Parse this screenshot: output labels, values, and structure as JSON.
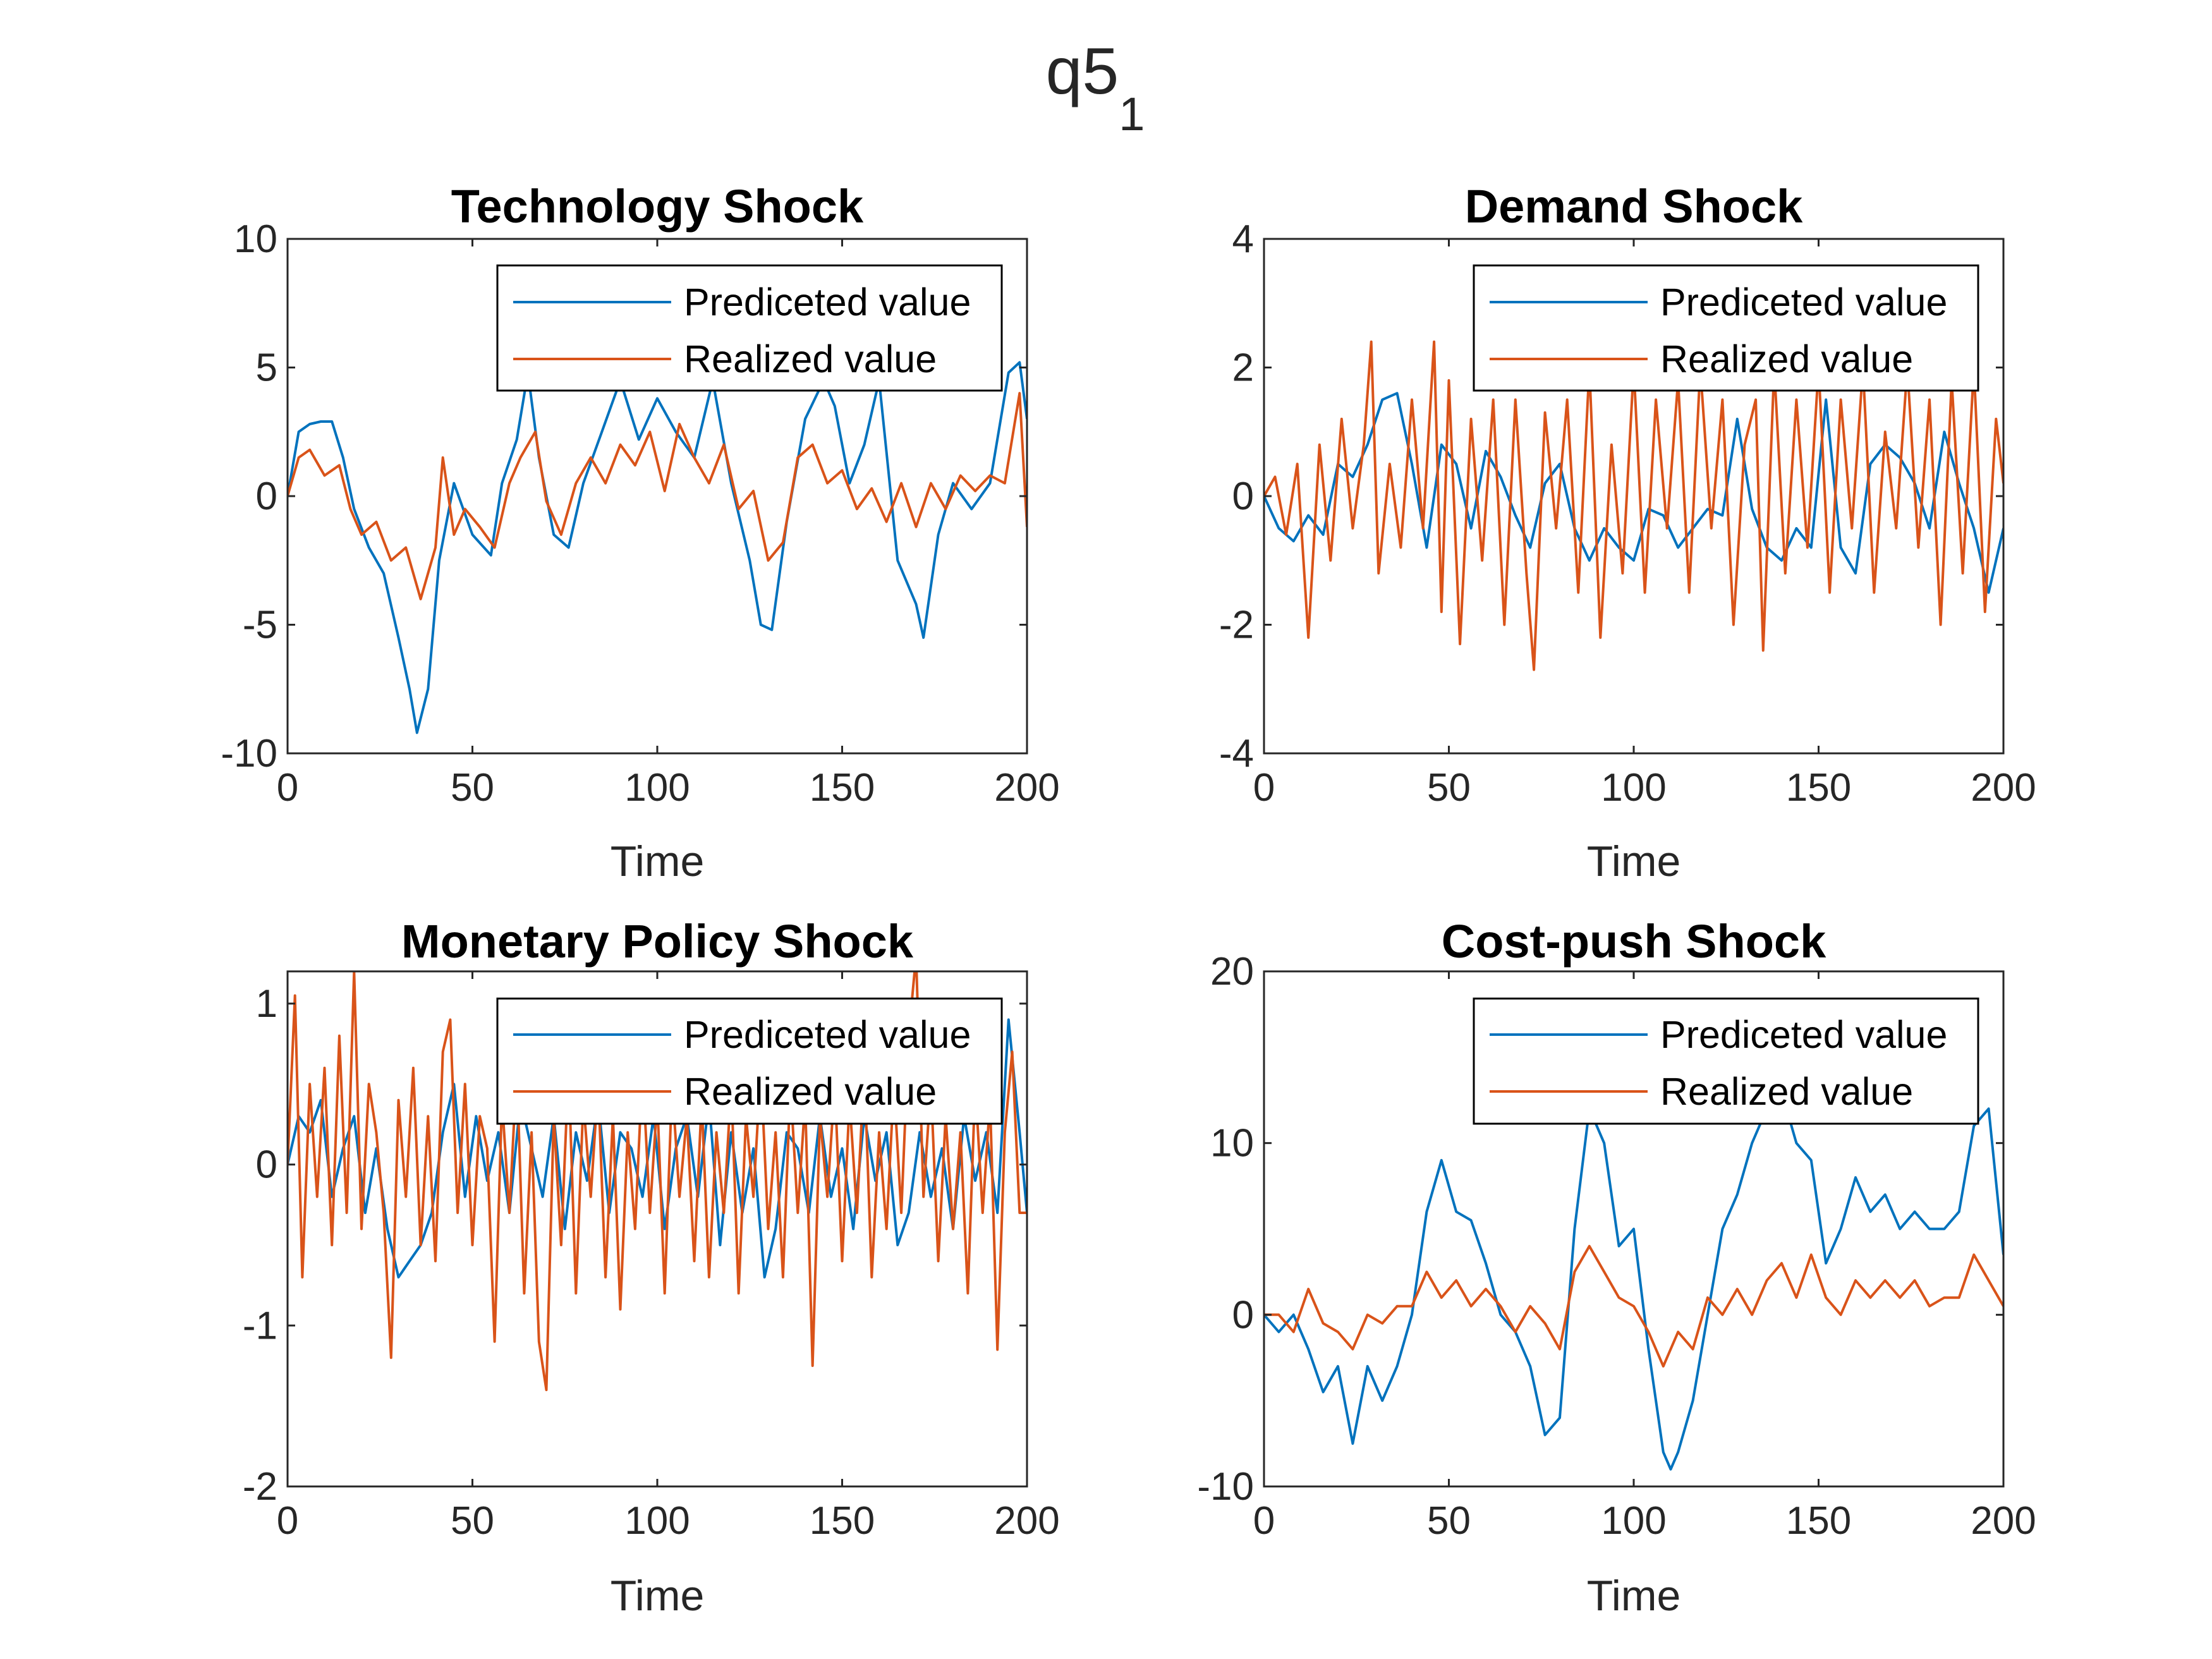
{
  "figure": {
    "title": "q5",
    "title_subscript": "1"
  },
  "colors": {
    "predicted": "#0072BD",
    "realized": "#D95319",
    "axes": "#262626",
    "legend_border": "#000000"
  },
  "chart_data": [
    {
      "type": "line",
      "title": "Technology Shock",
      "xlabel": "Time",
      "ylabel": "",
      "xlim": [
        0,
        200
      ],
      "ylim": [
        -10,
        10
      ],
      "xticks": [
        0,
        50,
        100,
        150,
        200
      ],
      "yticks": [
        -10,
        -5,
        0,
        5,
        10
      ],
      "legend_position": "top-right",
      "series": [
        {
          "name": "Prediceted value",
          "color": "#0072BD",
          "x": [
            0,
            3,
            6,
            9,
            12,
            15,
            18,
            22,
            26,
            30,
            33,
            35,
            38,
            41,
            45,
            50,
            55,
            58,
            62,
            65,
            68,
            72,
            76,
            80,
            85,
            90,
            95,
            100,
            105,
            110,
            115,
            120,
            125,
            128,
            131,
            135,
            140,
            145,
            148,
            152,
            156,
            160,
            165,
            170,
            172,
            176,
            180,
            185,
            190,
            195,
            198,
            200
          ],
          "y": [
            0,
            2.5,
            2.8,
            2.9,
            2.9,
            1.5,
            -0.5,
            -2,
            -3,
            -5.5,
            -7.5,
            -9.2,
            -7.5,
            -2.5,
            0.5,
            -1.5,
            -2.3,
            0.5,
            2.2,
            4.8,
            1.5,
            -1.5,
            -2,
            0.5,
            2.5,
            4.5,
            2.2,
            3.8,
            2.5,
            1.5,
            4.5,
            0.5,
            -2.5,
            -5,
            -5.2,
            -1,
            3,
            4.5,
            3.5,
            0.5,
            2,
            4.5,
            -2.5,
            -4.2,
            -5.5,
            -1.5,
            0.5,
            -0.5,
            0.5,
            4.8,
            5.2,
            3
          ]
        },
        {
          "name": "Realized value",
          "color": "#D95319",
          "x": [
            0,
            3,
            6,
            10,
            14,
            17,
            20,
            24,
            28,
            32,
            36,
            40,
            42,
            45,
            48,
            52,
            56,
            60,
            63,
            67,
            70,
            74,
            78,
            82,
            86,
            90,
            94,
            98,
            102,
            106,
            110,
            114,
            118,
            122,
            126,
            130,
            134,
            138,
            142,
            146,
            150,
            154,
            158,
            162,
            166,
            170,
            174,
            178,
            182,
            186,
            190,
            194,
            198,
            200
          ],
          "y": [
            0,
            1.5,
            1.8,
            0.8,
            1.2,
            -0.5,
            -1.5,
            -1,
            -2.5,
            -2,
            -4,
            -2,
            1.5,
            -1.5,
            -0.5,
            -1.2,
            -2,
            0.5,
            1.5,
            2.5,
            -0.2,
            -1.5,
            0.5,
            1.5,
            0.5,
            2,
            1.2,
            2.5,
            0.2,
            2.8,
            1.5,
            0.5,
            2,
            -0.5,
            0.2,
            -2.5,
            -1.8,
            1.5,
            2,
            0.5,
            1,
            -0.5,
            0.3,
            -1,
            0.5,
            -1.2,
            0.5,
            -0.5,
            0.8,
            0.2,
            0.8,
            0.5,
            4,
            -1.2
          ]
        }
      ]
    },
    {
      "type": "line",
      "title": "Demand Shock",
      "xlabel": "Time",
      "ylabel": "",
      "xlim": [
        0,
        200
      ],
      "ylim": [
        -4,
        4
      ],
      "xticks": [
        0,
        50,
        100,
        150,
        200
      ],
      "yticks": [
        -4,
        -2,
        0,
        2,
        4
      ],
      "legend_position": "top-right",
      "series": [
        {
          "name": "Prediceted value",
          "color": "#0072BD",
          "x": [
            0,
            4,
            8,
            12,
            16,
            20,
            24,
            28,
            32,
            36,
            40,
            44,
            48,
            52,
            56,
            60,
            64,
            68,
            72,
            76,
            80,
            84,
            88,
            92,
            96,
            100,
            104,
            108,
            112,
            116,
            120,
            124,
            128,
            132,
            136,
            140,
            144,
            148,
            152,
            156,
            160,
            164,
            168,
            172,
            176,
            180,
            184,
            188,
            192,
            196,
            200
          ],
          "y": [
            0,
            -0.5,
            -0.7,
            -0.3,
            -0.6,
            0.5,
            0.3,
            0.8,
            1.5,
            1.6,
            0.5,
            -0.8,
            0.8,
            0.5,
            -0.5,
            0.7,
            0.3,
            -0.3,
            -0.8,
            0.2,
            0.5,
            -0.5,
            -1,
            -0.5,
            -0.8,
            -1,
            -0.2,
            -0.3,
            -0.8,
            -0.5,
            -0.2,
            -0.3,
            1.2,
            -0.2,
            -0.8,
            -1,
            -0.5,
            -0.8,
            1.5,
            -0.8,
            -1.2,
            0.5,
            0.8,
            0.6,
            0.2,
            -0.5,
            1,
            0.2,
            -0.5,
            -1.5,
            -0.5
          ]
        },
        {
          "name": "Realized value",
          "color": "#D95319",
          "x": [
            0,
            3,
            6,
            9,
            12,
            15,
            18,
            21,
            24,
            27,
            29,
            31,
            34,
            37,
            40,
            43,
            46,
            48,
            50,
            53,
            56,
            59,
            62,
            65,
            68,
            71,
            73,
            76,
            79,
            82,
            85,
            88,
            91,
            94,
            97,
            100,
            103,
            106,
            109,
            112,
            115,
            118,
            121,
            124,
            127,
            130,
            133,
            135,
            138,
            141,
            144,
            147,
            150,
            153,
            156,
            159,
            162,
            165,
            168,
            171,
            174,
            177,
            180,
            183,
            186,
            189,
            192,
            195,
            198,
            200
          ],
          "y": [
            0,
            0.3,
            -0.6,
            0.5,
            -2.2,
            0.8,
            -1,
            1.2,
            -0.5,
            0.8,
            2.4,
            -1.2,
            0.5,
            -0.8,
            1.5,
            -0.5,
            2.4,
            -1.8,
            1.8,
            -2.3,
            1.2,
            -1,
            1.5,
            -2,
            1.5,
            -1.2,
            -2.7,
            1.3,
            -0.5,
            1.5,
            -1.5,
            2,
            -2.2,
            0.8,
            -1.2,
            2,
            -1.5,
            1.5,
            -0.5,
            1.8,
            -1.5,
            2,
            -0.5,
            1.5,
            -2,
            0.8,
            1.5,
            -2.4,
            2,
            -1.2,
            1.5,
            -0.8,
            2,
            -1.5,
            1.5,
            -0.5,
            2,
            -1.5,
            1,
            -0.5,
            2,
            -0.8,
            1.5,
            -2,
            1.8,
            -1.2,
            2,
            -1.8,
            1.2,
            0.2
          ]
        }
      ]
    },
    {
      "type": "line",
      "title": "Monetary Policy Shock",
      "xlabel": "Time",
      "ylabel": "",
      "xlim": [
        0,
        200
      ],
      "ylim": [
        -2,
        1.2
      ],
      "xticks": [
        0,
        50,
        100,
        150,
        200
      ],
      "yticks": [
        -2,
        -1,
        0,
        1
      ],
      "legend_position": "top-right",
      "series": [
        {
          "name": "Prediceted value",
          "color": "#0072BD",
          "x": [
            0,
            3,
            6,
            9,
            12,
            15,
            18,
            21,
            24,
            27,
            30,
            33,
            36,
            39,
            42,
            45,
            48,
            51,
            54,
            57,
            60,
            63,
            66,
            69,
            72,
            75,
            78,
            81,
            84,
            87,
            90,
            93,
            96,
            99,
            102,
            105,
            108,
            111,
            114,
            117,
            120,
            123,
            126,
            129,
            132,
            135,
            138,
            141,
            144,
            147,
            150,
            153,
            156,
            159,
            162,
            165,
            168,
            171,
            174,
            177,
            180,
            183,
            186,
            189,
            192,
            195,
            198,
            200
          ],
          "y": [
            0,
            0.3,
            0.2,
            0.4,
            -0.2,
            0.1,
            0.3,
            -0.3,
            0.1,
            -0.4,
            -0.7,
            -0.6,
            -0.5,
            -0.3,
            0.2,
            0.5,
            -0.2,
            0.3,
            -0.1,
            0.2,
            -0.3,
            0.4,
            0.1,
            -0.2,
            0.3,
            -0.4,
            0.2,
            -0.1,
            0.4,
            -0.3,
            0.2,
            0.1,
            -0.2,
            0.3,
            -0.4,
            0.1,
            0.3,
            -0.2,
            0.4,
            -0.5,
            0.2,
            -0.3,
            0.1,
            -0.7,
            -0.4,
            0.2,
            0.1,
            -0.3,
            0.3,
            -0.2,
            0.1,
            -0.4,
            0.3,
            -0.1,
            0.2,
            -0.5,
            -0.3,
            0.2,
            -0.2,
            0.1,
            -0.4,
            0.3,
            -0.1,
            0.2,
            -0.3,
            0.9,
            0.2,
            -0.3
          ]
        },
        {
          "name": "Realized value",
          "color": "#D95319",
          "x": [
            0,
            2,
            4,
            6,
            8,
            10,
            12,
            14,
            16,
            18,
            20,
            22,
            24,
            26,
            28,
            30,
            32,
            34,
            36,
            38,
            40,
            42,
            44,
            46,
            48,
            50,
            52,
            54,
            56,
            58,
            60,
            62,
            64,
            66,
            68,
            70,
            72,
            74,
            76,
            78,
            80,
            82,
            84,
            86,
            88,
            90,
            92,
            94,
            96,
            98,
            100,
            102,
            104,
            106,
            108,
            110,
            112,
            114,
            116,
            118,
            120,
            122,
            124,
            126,
            128,
            130,
            132,
            134,
            136,
            138,
            140,
            142,
            144,
            146,
            148,
            150,
            152,
            154,
            156,
            158,
            160,
            162,
            164,
            166,
            168,
            170,
            172,
            174,
            176,
            178,
            180,
            182,
            184,
            186,
            188,
            190,
            192,
            194,
            196,
            198,
            200
          ],
          "y": [
            0,
            1.05,
            -0.7,
            0.5,
            -0.2,
            0.6,
            -0.5,
            0.8,
            -0.3,
            1.2,
            -0.4,
            0.5,
            0.2,
            -0.3,
            -1.2,
            0.4,
            -0.2,
            0.6,
            -0.5,
            0.3,
            -0.6,
            0.7,
            0.9,
            -0.3,
            0.5,
            -0.5,
            0.3,
            0.1,
            -1.1,
            0.4,
            -0.3,
            0.6,
            -0.8,
            0.2,
            -1.1,
            -1.4,
            0.3,
            -0.5,
            0.6,
            -0.8,
            0.4,
            -0.2,
            0.5,
            -0.7,
            0.3,
            -0.9,
            0.2,
            -0.4,
            0.6,
            -0.3,
            0.4,
            -0.8,
            0.5,
            -0.2,
            0.3,
            -0.6,
            0.4,
            -0.7,
            0.2,
            -0.3,
            0.5,
            -0.8,
            0.3,
            -0.2,
            0.6,
            -0.4,
            0.2,
            -0.7,
            0.5,
            -0.3,
            0.4,
            -1.25,
            0.3,
            -0.2,
            0.5,
            -0.6,
            0.4,
            -0.3,
            0.6,
            -0.7,
            0.2,
            -0.4,
            0.5,
            -0.3,
            0.8,
            1.3,
            -0.2,
            0.5,
            -0.6,
            0.3,
            -0.4,
            0.2,
            -0.8,
            0.5,
            -0.3,
            0.4,
            -1.15,
            0.2,
            0.7,
            -0.3,
            -0.3
          ]
        }
      ]
    },
    {
      "type": "line",
      "title": "Cost-push Shock",
      "xlabel": "Time",
      "ylabel": "",
      "xlim": [
        0,
        200
      ],
      "ylim": [
        -10,
        20
      ],
      "xticks": [
        0,
        50,
        100,
        150,
        200
      ],
      "yticks": [
        -10,
        0,
        10,
        20
      ],
      "legend_position": "top-right",
      "series": [
        {
          "name": "Prediceted value",
          "color": "#0072BD",
          "x": [
            0,
            4,
            8,
            12,
            16,
            20,
            24,
            28,
            32,
            36,
            40,
            44,
            48,
            52,
            56,
            60,
            64,
            68,
            72,
            76,
            80,
            84,
            88,
            92,
            96,
            100,
            104,
            108,
            110,
            112,
            116,
            120,
            124,
            128,
            132,
            136,
            140,
            144,
            148,
            152,
            156,
            160,
            164,
            168,
            172,
            176,
            180,
            184,
            188,
            192,
            196,
            200
          ],
          "y": [
            0,
            -1,
            0,
            -2,
            -4.5,
            -3,
            -7.5,
            -3,
            -5,
            -3,
            0,
            6,
            9,
            6,
            5.5,
            3,
            0,
            -1,
            -3,
            -7,
            -6,
            5,
            12,
            10,
            4,
            5,
            -2,
            -8,
            -9,
            -8,
            -5,
            0,
            5,
            7,
            10,
            12,
            13,
            10,
            9,
            3,
            5,
            8,
            6,
            7,
            5,
            6,
            5,
            5,
            6,
            11,
            12,
            3.5
          ]
        },
        {
          "name": "Realized value",
          "color": "#D95319",
          "x": [
            0,
            4,
            8,
            12,
            16,
            20,
            24,
            28,
            32,
            36,
            40,
            44,
            48,
            52,
            56,
            60,
            64,
            68,
            72,
            76,
            80,
            84,
            88,
            92,
            96,
            100,
            104,
            108,
            112,
            116,
            120,
            124,
            128,
            132,
            136,
            140,
            144,
            148,
            152,
            156,
            160,
            164,
            168,
            172,
            176,
            180,
            184,
            188,
            192,
            196,
            200
          ],
          "y": [
            0,
            0,
            -1,
            1.5,
            -0.5,
            -1,
            -2,
            0,
            -0.5,
            0.5,
            0.5,
            2.5,
            1,
            2,
            0.5,
            1.5,
            0.5,
            -1,
            0.5,
            -0.5,
            -2,
            2.5,
            4,
            2.5,
            1,
            0.5,
            -1,
            -3,
            -1,
            -2,
            1,
            0,
            1.5,
            0,
            2,
            3,
            1,
            3.5,
            1,
            0,
            2,
            1,
            2,
            1,
            2,
            0.5,
            1,
            1,
            3.5,
            2,
            0.5
          ]
        }
      ]
    }
  ]
}
